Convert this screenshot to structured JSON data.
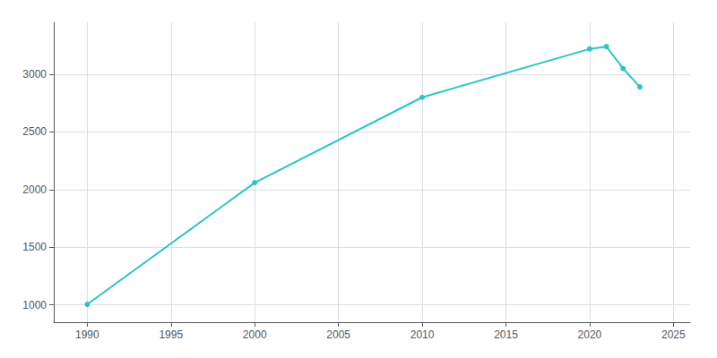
{
  "chart_data": {
    "type": "line",
    "x": [
      1990,
      2000,
      2010,
      2020,
      2021,
      2022,
      2023
    ],
    "values": [
      1005,
      2060,
      2800,
      3220,
      3240,
      3050,
      2890
    ],
    "color": "#2bc5c5",
    "marker": "circle",
    "xlim": [
      1988,
      2026
    ],
    "ylim": [
      850,
      3450
    ],
    "xticks": [
      1990,
      1995,
      2000,
      2005,
      2010,
      2015,
      2020,
      2025
    ],
    "yticks": [
      1000,
      1500,
      2000,
      2500,
      3000
    ],
    "grid": true
  }
}
